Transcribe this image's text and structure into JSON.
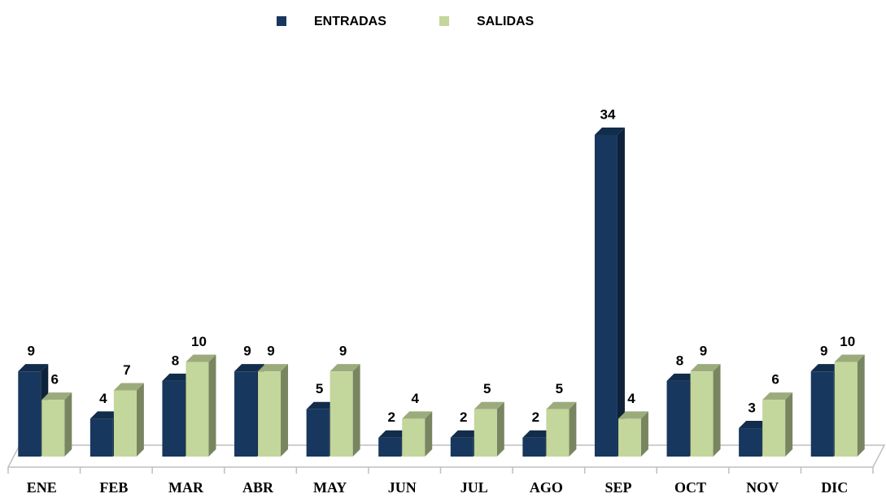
{
  "chart_data": {
    "type": "bar3d",
    "categories": [
      "ENE",
      "FEB",
      "MAR",
      "ABR",
      "MAY",
      "JUN",
      "JUL",
      "AGO",
      "SEP",
      "OCT",
      "NOV",
      "DIC"
    ],
    "series": [
      {
        "name": "ENTRADAS",
        "color": "#17375e",
        "values": [
          9,
          4,
          8,
          9,
          5,
          2,
          2,
          2,
          34,
          8,
          3,
          9
        ]
      },
      {
        "name": "SALIDAS",
        "color": "#c3d69b",
        "values": [
          6,
          7,
          10,
          9,
          9,
          4,
          5,
          5,
          4,
          9,
          6,
          10
        ]
      }
    ],
    "legend": "top"
  }
}
